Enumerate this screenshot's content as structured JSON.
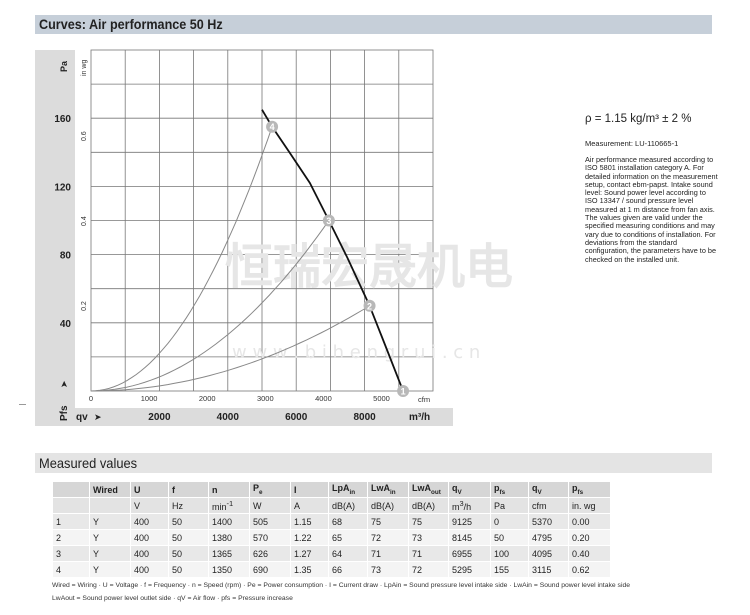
{
  "header": {
    "title": "Curves: Air performance 50 Hz"
  },
  "chart_data": {
    "type": "line",
    "title": "Curves: Air performance 50 Hz",
    "y_label": "Pa",
    "y2_label": "in wg",
    "y_axis_symbol": "Pfs",
    "x_label": "m³/h",
    "x2_label": "cfm",
    "x_axis_symbol": "qv",
    "xlim": [
      0,
      10000
    ],
    "ylim": [
      0,
      200
    ],
    "x_ticks": [
      2000,
      4000,
      6000,
      8000
    ],
    "x2_ticks": [
      0,
      1000,
      2000,
      3000,
      4000,
      5000
    ],
    "y_ticks": [
      40,
      80,
      120,
      160
    ],
    "y2_ticks": [
      0.2,
      0.4,
      0.6
    ],
    "grid": true,
    "fan_curve": {
      "x": [
        5000,
        5295,
        5800,
        6400,
        6955,
        7500,
        8145,
        8600,
        9125
      ],
      "y": [
        165,
        155,
        140,
        122,
        100,
        78,
        50,
        27,
        0
      ]
    },
    "operating_points": [
      {
        "label": "1",
        "x": 9125,
        "y": 0
      },
      {
        "label": "2",
        "x": 8145,
        "y": 50
      },
      {
        "label": "3",
        "x": 6955,
        "y": 100
      },
      {
        "label": "4",
        "x": 5295,
        "y": 155
      }
    ],
    "system_curves": "parabolas from origin through points 2, 3 and 4"
  },
  "watermark": {
    "cn": "恒瑞宏晟机电",
    "url": "w w w . b i h e n g r u i . c n"
  },
  "side": {
    "rho": "ρ = 1.15 kg/m³ ± 2 %",
    "measurement": "Measurement: LU-110665-1",
    "description": "Air performance measured according to ISO 5801 installation category A. For detailed information on the measurement setup, contact ebm-papst. Intake sound level: Sound power level according to ISO 13347 / sound pressure level measured at 1 m distance from fan axis. The values given are valid under the specified measuring conditions and may vary due to conditions of installation. For deviations from the standard configuration, the parameters have to be checked on the installed unit."
  },
  "measured": {
    "title": "Measured values",
    "headers": [
      "",
      "Wired",
      "U",
      "f",
      "n",
      "Pe",
      "I",
      "LpAin",
      "LwAin",
      "LwAout",
      "qV",
      "pfs",
      "qV",
      "pfs"
    ],
    "units": [
      "",
      "",
      "V",
      "Hz",
      "min-1",
      "W",
      "A",
      "dB(A)",
      "dB(A)",
      "dB(A)",
      "m3/h",
      "Pa",
      "cfm",
      "in. wg"
    ],
    "rows": [
      [
        "1",
        "Y",
        "400",
        "50",
        "1400",
        "505",
        "1.15",
        "68",
        "75",
        "75",
        "9125",
        "0",
        "5370",
        "0.00"
      ],
      [
        "2",
        "Y",
        "400",
        "50",
        "1380",
        "570",
        "1.22",
        "65",
        "72",
        "73",
        "8145",
        "50",
        "4795",
        "0.20"
      ],
      [
        "3",
        "Y",
        "400",
        "50",
        "1365",
        "626",
        "1.27",
        "64",
        "71",
        "71",
        "6955",
        "100",
        "4095",
        "0.40"
      ],
      [
        "4",
        "Y",
        "400",
        "50",
        "1350",
        "690",
        "1.35",
        "66",
        "73",
        "72",
        "5295",
        "155",
        "3115",
        "0.62"
      ]
    ],
    "legend_line1": "Wired = Wiring · U = Voltage · f = Frequency · n = Speed (rpm) · Pe = Power consumption · I = Current draw · LpAin = Sound pressure level intake side · LwAin = Sound power level intake side",
    "legend_line2": "LwAout = Sound power level outlet side · qV = Air flow · pfs = Pressure increase"
  }
}
